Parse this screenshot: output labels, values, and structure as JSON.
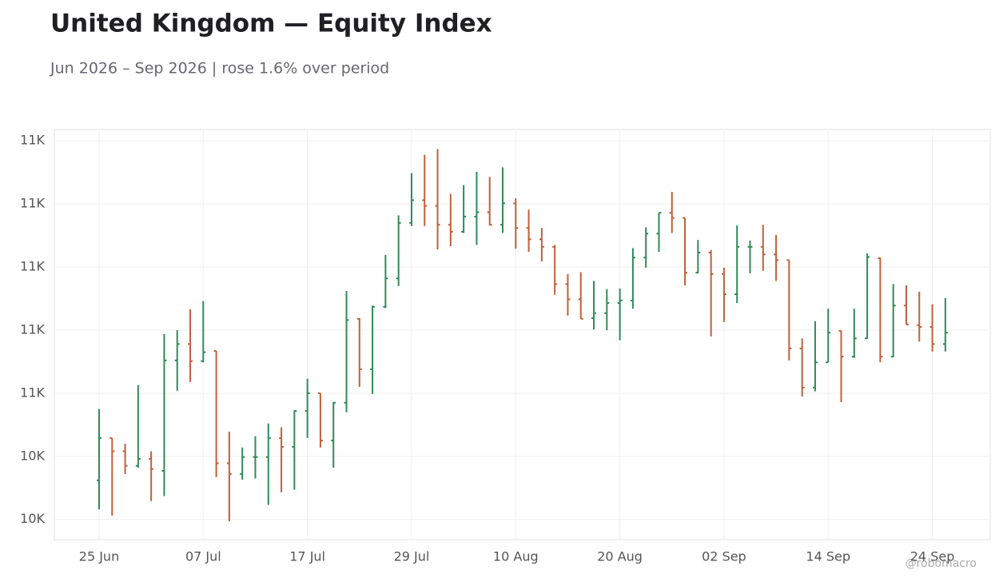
{
  "chart_data": {
    "type": "ohlc",
    "title": "United Kingdom — Equity Index",
    "subtitle": "Jun 2026 – Sep 2026 | rose 1.6% over period",
    "watermark": "@robomacro",
    "categories": [
      "25 Jun",
      null,
      null,
      null,
      null,
      null,
      null,
      null,
      "07 Jul",
      null,
      null,
      null,
      null,
      null,
      null,
      null,
      "17 Jul",
      null,
      null,
      null,
      null,
      null,
      null,
      null,
      "29 Jul",
      null,
      null,
      null,
      null,
      null,
      null,
      null,
      "10 Aug",
      null,
      null,
      null,
      null,
      null,
      null,
      null,
      "20 Aug",
      null,
      null,
      null,
      null,
      null,
      null,
      null,
      "02 Sep",
      null,
      null,
      null,
      null,
      null,
      null,
      null,
      "14 Sep",
      null,
      null,
      null,
      null,
      null,
      null,
      null,
      "24 Sep",
      null
    ],
    "open": [
      10362,
      10429,
      10408,
      10385,
      10396,
      10377,
      10552,
      10578,
      10551,
      10567,
      10389,
      10372,
      10399,
      10399,
      10429,
      10415,
      10472,
      10500,
      10425,
      10485,
      10618,
      10538,
      10637,
      10682,
      10770,
      10806,
      10797,
      10767,
      10756,
      10780,
      10787,
      10767,
      10801,
      10762,
      10744,
      10732,
      10673,
      10649,
      10619,
      10627,
      10643,
      10647,
      10715,
      10753,
      10786,
      10778,
      10691,
      10723,
      10689,
      10657,
      10732,
      10732,
      10720,
      10711,
      10571,
      10509,
      10549,
      10599,
      10558,
      10587,
      10714,
      10558,
      10639,
      10608,
      10605,
      10578
    ],
    "high": [
      10475,
      10429,
      10420,
      10513,
      10408,
      10594,
      10600,
      10633,
      10646,
      10567,
      10439,
      10414,
      10432,
      10452,
      10446,
      10473,
      10523,
      10500,
      10486,
      10662,
      10619,
      10639,
      10719,
      10782,
      10849,
      10878,
      10887,
      10816,
      10830,
      10851,
      10843,
      10858,
      10809,
      10791,
      10762,
      10735,
      10689,
      10692,
      10678,
      10665,
      10666,
      10730,
      10763,
      10786,
      10819,
      10778,
      10743,
      10727,
      10699,
      10766,
      10742,
      10767,
      10751,
      10711,
      10587,
      10614,
      10634,
      10599,
      10634,
      10722,
      10715,
      10673,
      10671,
      10661,
      10641,
      10651
    ],
    "low": [
      10316,
      10306,
      10372,
      10382,
      10329,
      10337,
      10504,
      10518,
      10549,
      10367,
      10297,
      10363,
      10365,
      10323,
      10343,
      10347,
      10429,
      10414,
      10382,
      10470,
      10510,
      10499,
      10635,
      10670,
      10765,
      10765,
      10728,
      10733,
      10754,
      10735,
      10766,
      10754,
      10729,
      10724,
      10709,
      10656,
      10623,
      10618,
      10601,
      10600,
      10584,
      10634,
      10699,
      10724,
      10754,
      10671,
      10690,
      10590,
      10613,
      10643,
      10690,
      10694,
      10678,
      10552,
      10495,
      10503,
      10549,
      10486,
      10556,
      10586,
      10549,
      10557,
      10609,
      10582,
      10566,
      10566
    ],
    "close": [
      10429,
      10408,
      10385,
      10396,
      10380,
      10552,
      10578,
      10551,
      10565,
      10389,
      10372,
      10399,
      10399,
      10429,
      10415,
      10472,
      10500,
      10425,
      10485,
      10616,
      10538,
      10637,
      10682,
      10770,
      10806,
      10797,
      10767,
      10756,
      10780,
      10787,
      10767,
      10801,
      10762,
      10744,
      10732,
      10673,
      10649,
      10618,
      10627,
      10643,
      10647,
      10715,
      10753,
      10786,
      10778,
      10691,
      10723,
      10689,
      10657,
      10732,
      10732,
      10720,
      10711,
      10571,
      10509,
      10549,
      10596,
      10558,
      10587,
      10716,
      10558,
      10639,
      10609,
      10605,
      10578,
      10596
    ],
    "up_color": "#2e8b57",
    "down_color": "#c0603a",
    "ylim": [
      10268,
      10918
    ],
    "yticks": [
      {
        "value": 10300,
        "label": "10K"
      },
      {
        "value": 10400,
        "label": "10K"
      },
      {
        "value": 10500,
        "label": "11K"
      },
      {
        "value": 10600,
        "label": "11K"
      },
      {
        "value": 10700,
        "label": "11K"
      },
      {
        "value": 10800,
        "label": "11K"
      },
      {
        "value": 10900,
        "label": "11K"
      }
    ],
    "grid": true
  }
}
